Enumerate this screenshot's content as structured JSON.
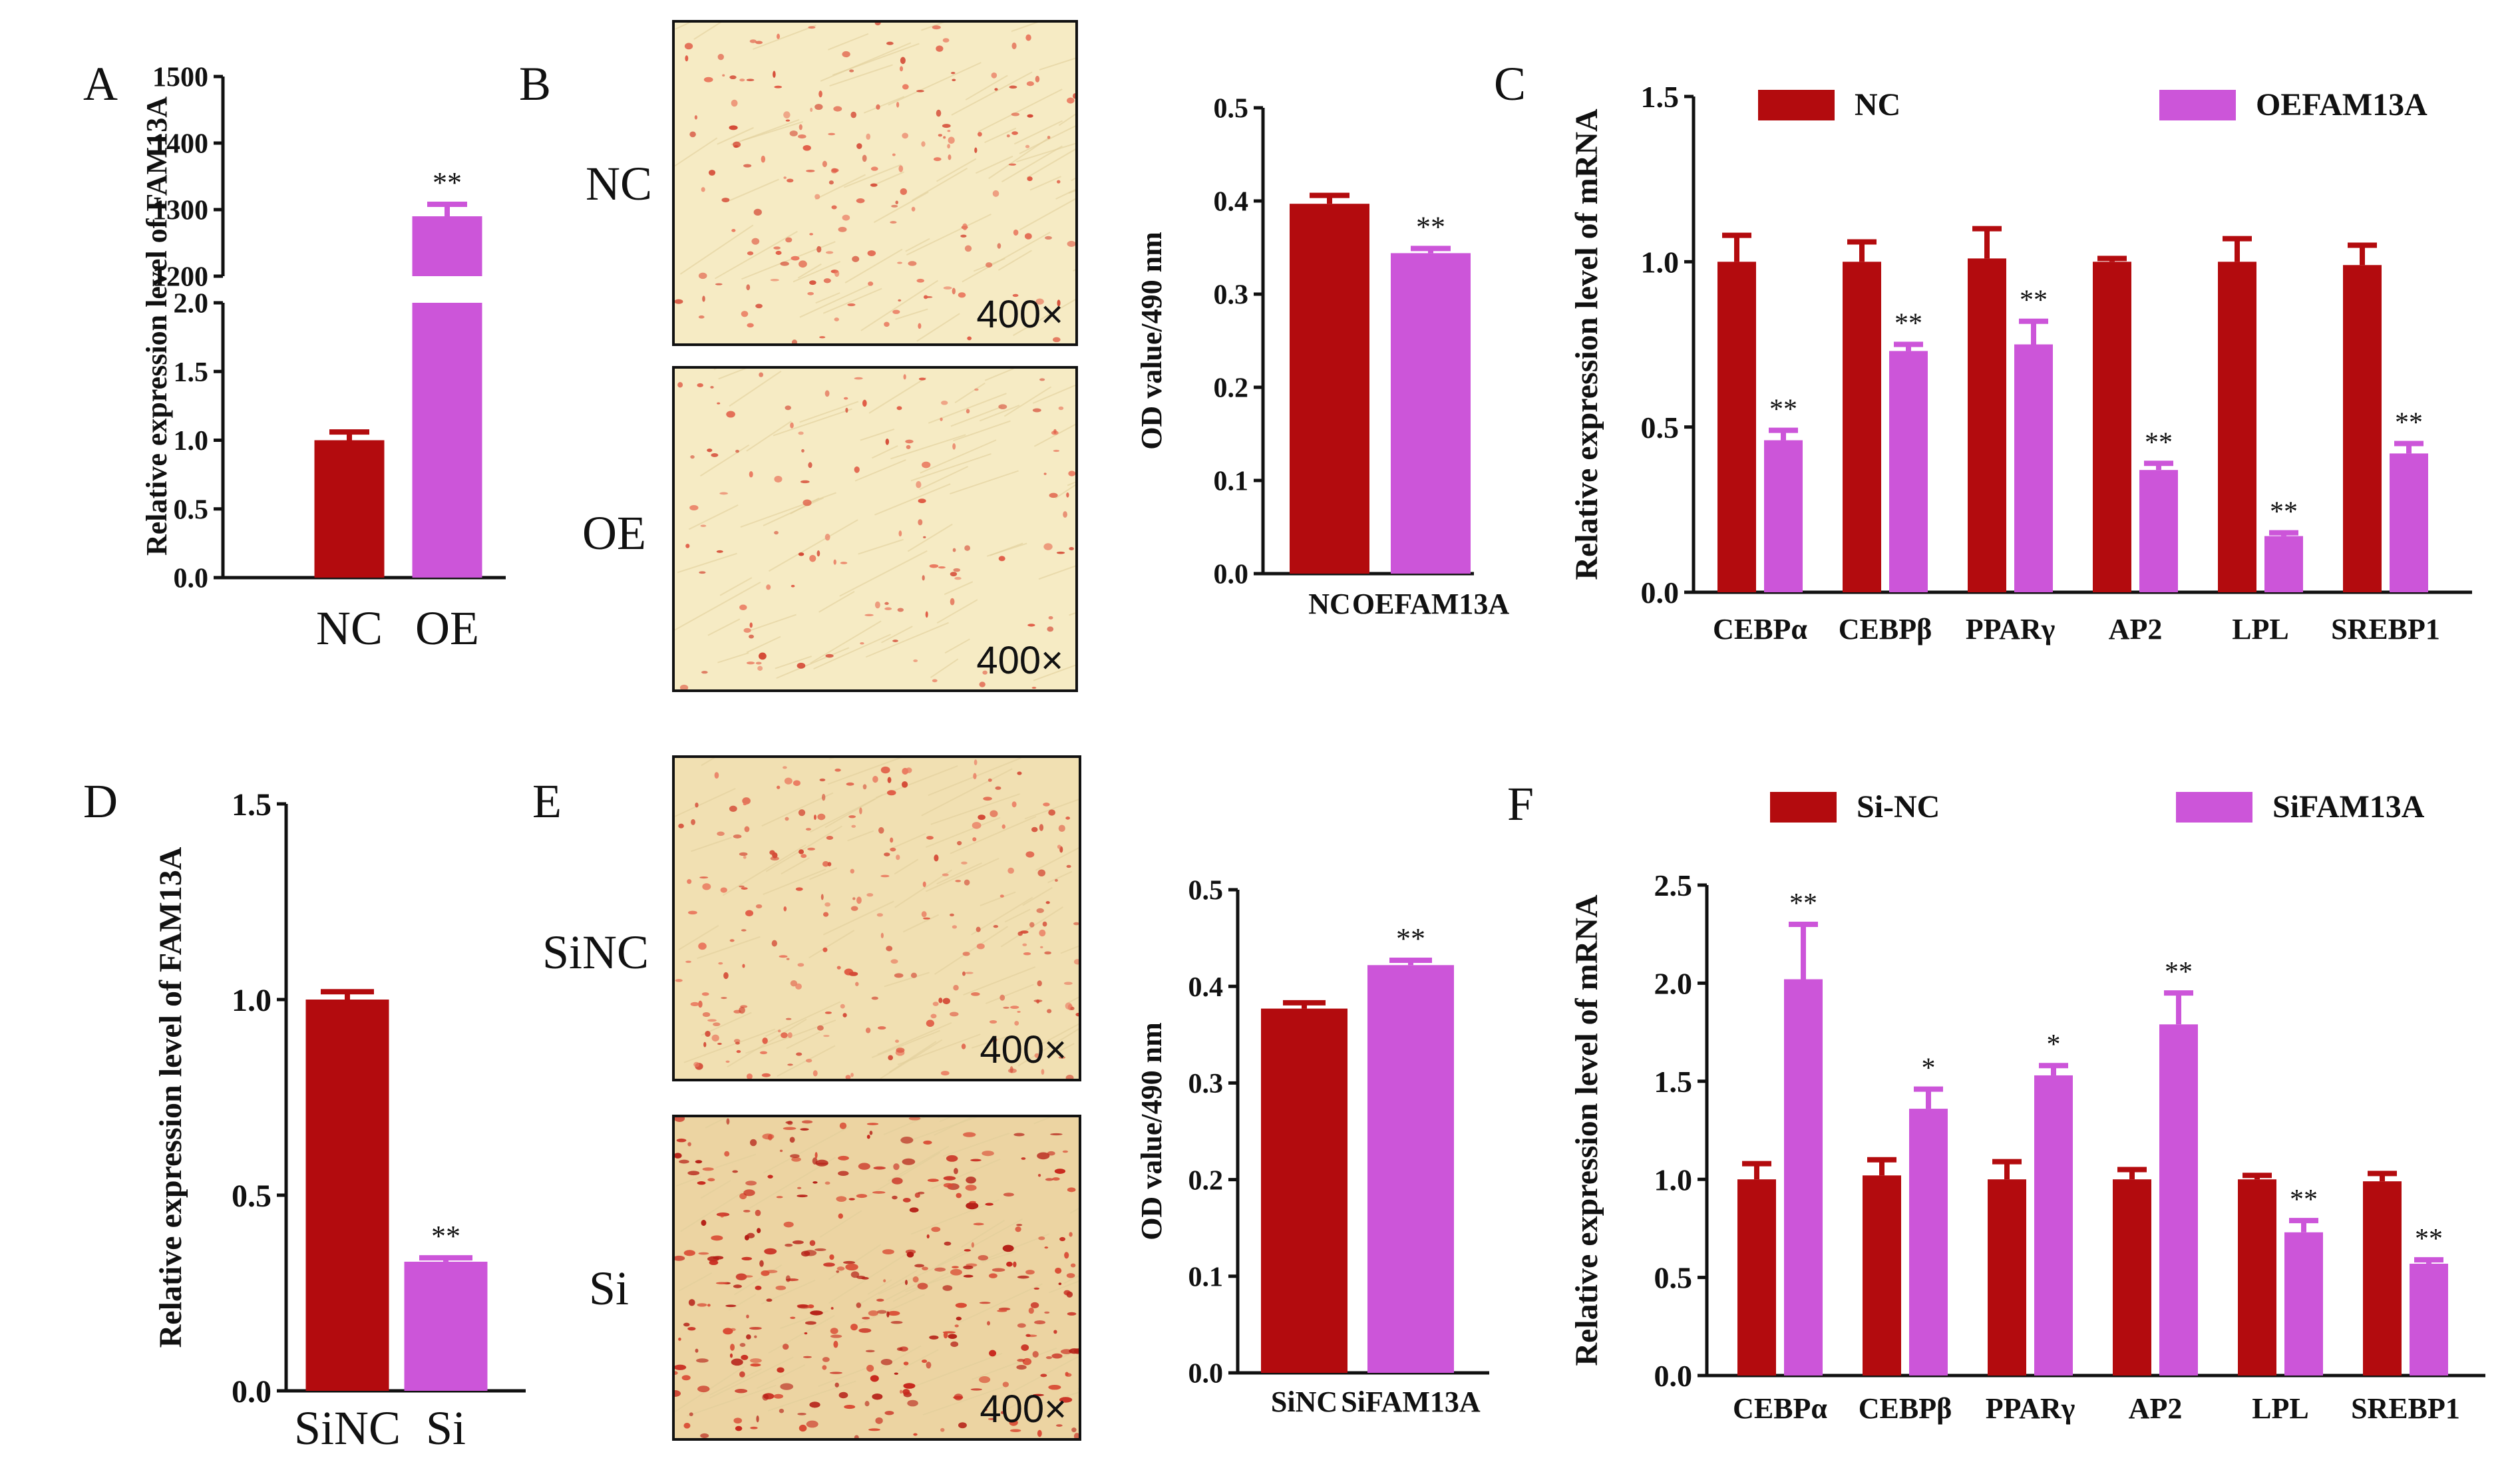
{
  "colors": {
    "nc": "#b30b0e",
    "treat": "#cc55d9",
    "axis": "#111111",
    "gap": "#ffffff"
  },
  "panels": {
    "A": {
      "letter": "A"
    },
    "B": {
      "letter": "B",
      "row_top": "NC",
      "row_bottom": "OE",
      "magnification": "400×"
    },
    "C": {
      "letter": "C"
    },
    "D": {
      "letter": "D"
    },
    "E": {
      "letter": "E",
      "row_top": "SiNC",
      "row_bottom": "Si",
      "magnification": "400×"
    },
    "F": {
      "letter": "F"
    }
  },
  "chart_data": [
    {
      "id": "A",
      "type": "bar",
      "broken_axis": true,
      "ylabel": "Relative expression level of FAM13A",
      "categories": [
        "NC",
        "OE"
      ],
      "values": [
        1.0,
        1290
      ],
      "errors": [
        0.06,
        18
      ],
      "significance": [
        "",
        "**"
      ],
      "lower_ylim": [
        0,
        2.0
      ],
      "lower_ticks": [
        "0.0",
        "0.5",
        "1.0",
        "1.5",
        "2.0"
      ],
      "upper_ylim": [
        1200,
        1500
      ],
      "upper_ticks": [
        "1200",
        "1300",
        "1400",
        "1500"
      ]
    },
    {
      "id": "B_chart",
      "type": "bar",
      "ylabel": "OD value/490 nm",
      "categories": [
        "NC",
        "OEFAM13A"
      ],
      "values": [
        0.397,
        0.344
      ],
      "errors": [
        0.009,
        0.005
      ],
      "significance": [
        "",
        "**"
      ],
      "ylim": [
        0,
        0.5
      ],
      "ticks": [
        "0.0",
        "0.1",
        "0.2",
        "0.3",
        "0.4",
        "0.5"
      ]
    },
    {
      "id": "C",
      "type": "bar",
      "ylabel": "Relative expression level of mRNA",
      "categories": [
        "CEBPα",
        "CEBPβ",
        "PPARγ",
        "AP2",
        "LPL",
        "SREBP1"
      ],
      "series": [
        {
          "name": "NC",
          "values": [
            1.0,
            1.0,
            1.01,
            1.0,
            1.0,
            0.99
          ],
          "errors": [
            0.08,
            0.06,
            0.09,
            0.01,
            0.07,
            0.06
          ],
          "significance": [
            "",
            "",
            "",
            "",
            "",
            ""
          ]
        },
        {
          "name": "OEFAM13A",
          "values": [
            0.46,
            0.73,
            0.75,
            0.37,
            0.17,
            0.42
          ],
          "errors": [
            0.03,
            0.02,
            0.07,
            0.02,
            0.01,
            0.03
          ],
          "significance": [
            "**",
            "**",
            "**",
            "**",
            "**",
            "**"
          ]
        }
      ],
      "ylim": [
        0,
        1.5
      ],
      "ticks": [
        "0.0",
        "0.5",
        "1.0",
        "1.5"
      ],
      "legend": "top"
    },
    {
      "id": "D",
      "type": "bar",
      "ylabel": "Relative expression level of FAM13A",
      "categories": [
        "SiNC",
        "Si"
      ],
      "values": [
        1.0,
        0.33
      ],
      "errors": [
        0.02,
        0.01
      ],
      "significance": [
        "",
        "**"
      ],
      "ylim": [
        0,
        1.5
      ],
      "ticks": [
        "0.0",
        "0.5",
        "1.0",
        "1.5"
      ]
    },
    {
      "id": "E_chart",
      "type": "bar",
      "ylabel": "OD value/490 nm",
      "categories": [
        "SiNC",
        "SiFAM13A"
      ],
      "values": [
        0.377,
        0.422
      ],
      "errors": [
        0.006,
        0.005
      ],
      "significance": [
        "",
        "**"
      ],
      "ylim": [
        0,
        0.5
      ],
      "ticks": [
        "0.0",
        "0.1",
        "0.2",
        "0.3",
        "0.4",
        "0.5"
      ]
    },
    {
      "id": "F",
      "type": "bar",
      "ylabel": "Relative expression level of mRNA",
      "categories": [
        "CEBPα",
        "CEBPβ",
        "PPARγ",
        "AP2",
        "LPL",
        "SREBP1"
      ],
      "series": [
        {
          "name": "Si-NC",
          "values": [
            1.0,
            1.02,
            1.0,
            1.0,
            1.0,
            0.99
          ],
          "errors": [
            0.08,
            0.08,
            0.09,
            0.05,
            0.02,
            0.04
          ],
          "significance": [
            "",
            "",
            "",
            "",
            "",
            ""
          ]
        },
        {
          "name": "SiFAM13A",
          "values": [
            2.02,
            1.36,
            1.53,
            1.79,
            0.73,
            0.57
          ],
          "errors": [
            0.28,
            0.1,
            0.05,
            0.16,
            0.06,
            0.02
          ],
          "significance": [
            "**",
            "*",
            "*",
            "**",
            "**",
            "**"
          ]
        }
      ],
      "ylim": [
        0,
        2.5
      ],
      "ticks": [
        "0.0",
        "0.5",
        "1.0",
        "1.5",
        "2.0",
        "2.5"
      ],
      "legend": "top"
    }
  ]
}
